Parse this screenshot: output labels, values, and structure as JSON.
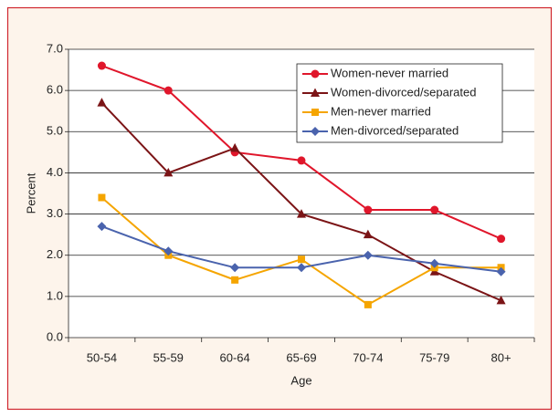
{
  "chart_data": {
    "type": "line",
    "x_label": "Age",
    "y_label": "Percent",
    "categories": [
      "50-54",
      "55-59",
      "60-64",
      "65-69",
      "70-74",
      "75-79",
      "80+"
    ],
    "series": [
      {
        "name": "Women-never married",
        "color": "#e0162b",
        "marker": "circle",
        "values": [
          6.6,
          6.0,
          4.5,
          4.3,
          3.1,
          3.1,
          2.4
        ]
      },
      {
        "name": "Women-divorced/separated",
        "color": "#7b1416",
        "marker": "triangle",
        "values": [
          5.7,
          4.0,
          4.6,
          3.0,
          2.5,
          1.6,
          0.9
        ]
      },
      {
        "name": "Men-never married",
        "color": "#f5a500",
        "marker": "square",
        "values": [
          3.4,
          2.0,
          1.4,
          1.9,
          0.8,
          1.7,
          1.7
        ]
      },
      {
        "name": "Men-divorced/separated",
        "color": "#4a63ad",
        "marker": "diamond",
        "values": [
          2.7,
          2.1,
          1.7,
          1.7,
          2.0,
          1.8,
          1.6
        ]
      }
    ],
    "ylim": [
      0,
      7
    ],
    "yticks": [
      {
        "value": 0,
        "label": "0.0"
      },
      {
        "value": 1,
        "label": "1.0"
      },
      {
        "value": 2,
        "label": "2.0"
      },
      {
        "value": 3,
        "label": "3.0"
      },
      {
        "value": 4,
        "label": "4.0"
      },
      {
        "value": 5,
        "label": "5.0"
      },
      {
        "value": 6,
        "label": "6.0"
      },
      {
        "value": 7,
        "label": "7.0"
      }
    ],
    "grid": true,
    "legend": "upper right"
  }
}
